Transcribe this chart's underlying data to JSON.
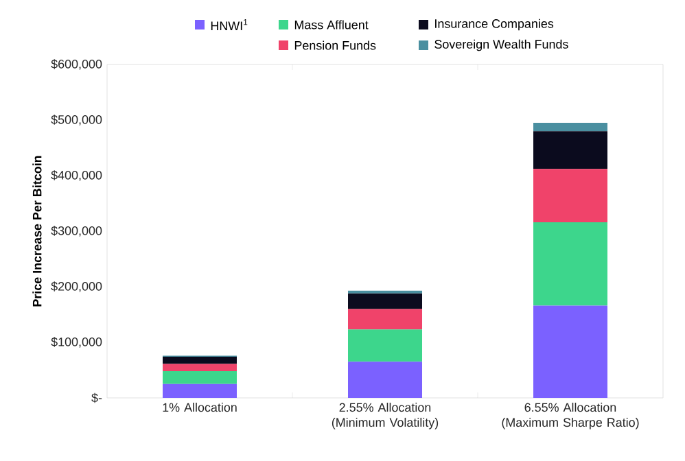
{
  "chart_data": {
    "type": "bar",
    "stacked": true,
    "ylabel": "Price Increase Per Bitcoin",
    "categories": [
      "1% Allocation",
      "2.55% Allocation (Minimum Volatility)",
      "6.55% Allocation (Maximum Sharpe Ratio)"
    ],
    "series": [
      {
        "name": "HNWI$^{1}$",
        "color": "#7b61ff",
        "values": [
          25000,
          65000,
          166000
        ]
      },
      {
        "name": "Mass Affluent",
        "color": "#3dd68c",
        "values": [
          23000,
          58000,
          150000
        ]
      },
      {
        "name": "Pension Funds",
        "color": "#f0436a",
        "values": [
          13000,
          37000,
          96000
        ]
      },
      {
        "name": "Insurance Companies",
        "color": "#0b0b1e",
        "values": [
          13000,
          28000,
          68000
        ]
      },
      {
        "name": "Sovereign Wealth Funds",
        "color": "#4a8fa0",
        "values": [
          2000,
          5000,
          15000
        ]
      }
    ],
    "ylim": [
      0,
      600000
    ],
    "yticks": [
      {
        "value": 0,
        "label": "$-"
      },
      {
        "value": 100000,
        "label": "$100,000"
      },
      {
        "value": 200000,
        "label": "$200,000"
      },
      {
        "value": 300000,
        "label": "$300,000"
      },
      {
        "value": 400000,
        "label": "$400,000"
      },
      {
        "value": 500000,
        "label": "$500,000"
      },
      {
        "value": 600000,
        "label": "$600,000"
      }
    ],
    "legend": "top",
    "grid": false
  }
}
